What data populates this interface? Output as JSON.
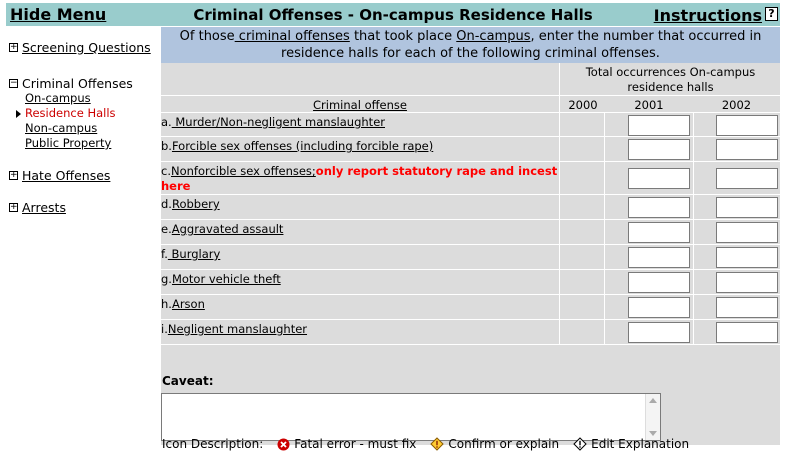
{
  "header": {
    "hide_menu": "Hide Menu",
    "title": "Criminal Offenses - On-campus Residence Halls",
    "instructions": "Instructions",
    "help": "?"
  },
  "sidebar": {
    "screening": "Screening Questions",
    "criminal": "Criminal Offenses",
    "criminal_items": [
      "On-campus",
      "Residence Halls",
      "Non-campus",
      "Public Property"
    ],
    "active_item": "Residence Halls",
    "hate": "Hate Offenses",
    "arrests": "Arrests"
  },
  "intro": {
    "part1": "Of those",
    "link1": " criminal offenses",
    "part2": " that took place ",
    "link2": "On-campus",
    "part3": ", enter the number that occurred in residence halls for each of the following criminal offenses."
  },
  "table": {
    "total_header": "Total occurrences On-campus residence halls",
    "offense_col": "Criminal offense",
    "years": [
      "2000",
      "2001",
      "2002"
    ],
    "rows": [
      {
        "prefix": "a.",
        "label": " Murder/Non-negligent manslaughter",
        "note": ""
      },
      {
        "prefix": "b.",
        "label": "Forcible sex offenses (including forcible rape)",
        "note": ""
      },
      {
        "prefix": "c.",
        "label": "Nonforcible sex offenses;",
        "note": "only report statutory rape and incest here"
      },
      {
        "prefix": "d.",
        "label": "Robbery",
        "note": ""
      },
      {
        "prefix": "e.",
        "label": "Aggravated assault",
        "note": ""
      },
      {
        "prefix": "f.",
        "label": " Burglary",
        "note": ""
      },
      {
        "prefix": "g.",
        "label": "Motor vehicle theft",
        "note": ""
      },
      {
        "prefix": "h.",
        "label": "Arson",
        "note": ""
      },
      {
        "prefix": "i.",
        "label": "Negligent manslaughter",
        "note": ""
      }
    ],
    "values_2001": [
      "",
      "",
      "",
      "",
      "",
      "",
      "",
      "",
      ""
    ],
    "values_2002": [
      "",
      "",
      "",
      "",
      "",
      "",
      "",
      "",
      ""
    ]
  },
  "caveat": {
    "label": "Caveat:",
    "value": ""
  },
  "legend": {
    "title": "Icon Description:",
    "fatal": "Fatal error - must fix",
    "confirm": "Confirm or explain",
    "edit": "Edit Explanation"
  },
  "colors": {
    "topbar": "#99cccc",
    "intro_bg": "#b0c4de",
    "grid_bg": "#dcdcdc",
    "warning": "#ff0000",
    "active_nav": "#cc0000"
  }
}
